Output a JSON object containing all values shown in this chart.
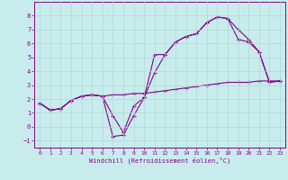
{
  "xlabel": "Windchill (Refroidissement éolien,°C)",
  "bg_color": "#c8ecec",
  "line_color": "#880088",
  "grid_color": "#aadddd",
  "xlim": [
    -0.5,
    23.5
  ],
  "ylim": [
    -1.5,
    9.0
  ],
  "yticks": [
    -1,
    0,
    1,
    2,
    3,
    4,
    5,
    6,
    7,
    8
  ],
  "xticks": [
    0,
    1,
    2,
    3,
    4,
    5,
    6,
    7,
    8,
    9,
    10,
    11,
    12,
    13,
    14,
    15,
    16,
    17,
    18,
    19,
    20,
    21,
    22,
    23
  ],
  "line1_x": [
    0,
    1,
    2,
    3,
    4,
    5,
    6,
    7,
    8,
    9,
    10,
    11,
    12,
    13,
    14,
    15,
    16,
    17,
    18,
    19,
    20,
    21,
    22,
    23
  ],
  "line1_y": [
    1.7,
    1.2,
    1.3,
    1.9,
    2.2,
    2.3,
    2.2,
    0.8,
    -0.4,
    1.5,
    2.1,
    5.2,
    5.2,
    6.1,
    6.5,
    6.7,
    7.5,
    7.9,
    7.8,
    7.0,
    6.3,
    5.4,
    3.2,
    3.3
  ],
  "line2_x": [
    0,
    1,
    2,
    3,
    4,
    5,
    6,
    7,
    8,
    9,
    10,
    11,
    12,
    13,
    14,
    15,
    16,
    17,
    18,
    19,
    20,
    21,
    22,
    23
  ],
  "line2_y": [
    1.7,
    1.2,
    1.3,
    1.9,
    2.2,
    2.3,
    2.2,
    -0.7,
    -0.6,
    0.8,
    2.1,
    3.9,
    5.2,
    6.1,
    6.5,
    6.7,
    7.5,
    7.9,
    7.8,
    6.3,
    6.1,
    5.4,
    3.2,
    3.3
  ],
  "line3_x": [
    0,
    1,
    2,
    3,
    4,
    5,
    6,
    7,
    8,
    9,
    10,
    11,
    12,
    13,
    14,
    15,
    16,
    17,
    18,
    19,
    20,
    21,
    22,
    23
  ],
  "line3_y": [
    1.7,
    1.2,
    1.3,
    1.9,
    2.2,
    2.3,
    2.2,
    2.3,
    2.3,
    2.4,
    2.4,
    2.5,
    2.6,
    2.7,
    2.8,
    2.9,
    3.0,
    3.1,
    3.2,
    3.2,
    3.2,
    3.3,
    3.3,
    3.3
  ]
}
